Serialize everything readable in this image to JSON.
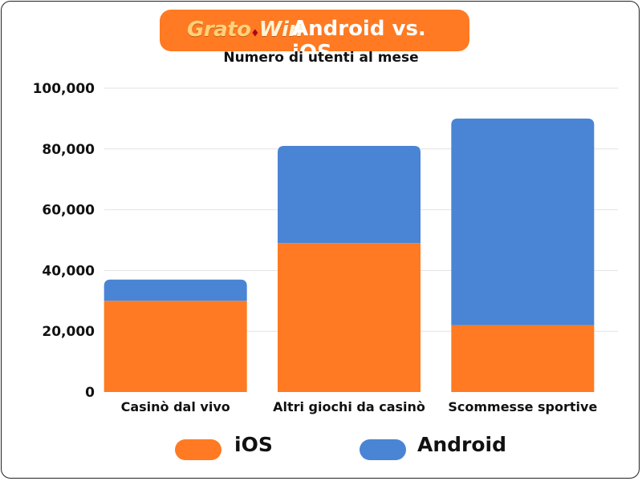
{
  "header": {
    "logo_text_a": "Grato",
    "logo_text_b": "Win",
    "title": "Android vs. iOS"
  },
  "chart_data": {
    "type": "bar",
    "stacked": true,
    "subtitle": "Numero di utenti al mese",
    "categories": [
      "Casinò dal vivo",
      "Altri giochi da casinò",
      "Scommesse sportive"
    ],
    "series": [
      {
        "name": "iOS",
        "color": "#ff7a22",
        "values": [
          30000,
          49000,
          22000
        ]
      },
      {
        "name": "Android",
        "color": "#4a84d4",
        "values": [
          7000,
          32000,
          68000
        ]
      }
    ],
    "yticks": [
      "0",
      "20,000",
      "40,000",
      "60,000",
      "80,000",
      "100,000"
    ],
    "ylim": [
      0,
      100000
    ],
    "grid": true,
    "legend_position": "bottom"
  }
}
